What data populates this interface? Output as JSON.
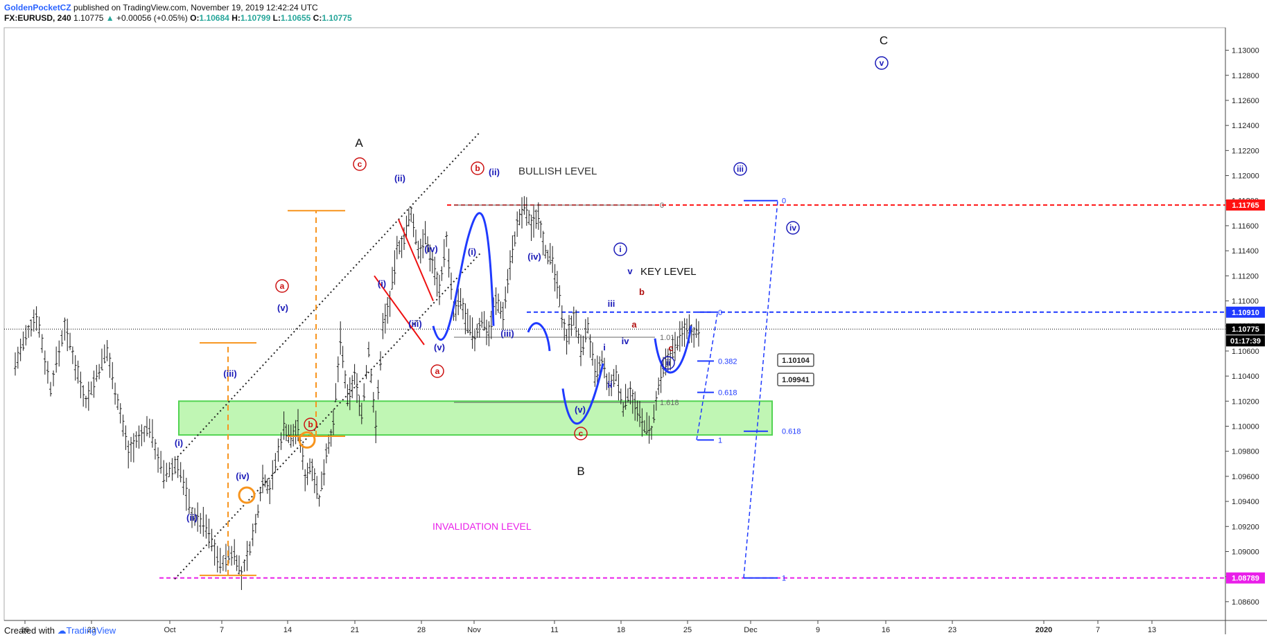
{
  "header": {
    "author": "GoldenPocketCZ",
    "published": "published on TradingView.com, November 19, 2019 12:42:24 UTC",
    "symbol": "FX:EURUSD, 240",
    "last": "1.10775",
    "change": "+0.00056 (+0.05%)",
    "o_label": "O:",
    "o": "1.10684",
    "h_label": "H:",
    "h": "1.10799",
    "l_label": "L:",
    "l": "1.10655",
    "c_label": "C:",
    "c": "1.10775"
  },
  "footer": {
    "created": "Created with",
    "brand": "TradingView"
  },
  "colors": {
    "blue": "#1a1ab8",
    "red": "#cc1111",
    "orange": "#f7941d",
    "magenta": "#e91ee9",
    "green_fill": "#b6f5a8",
    "green_stroke": "#33cc33",
    "key_blue": "#1f3aff",
    "bar": "#1a1a1a"
  },
  "chart_data": {
    "type": "ohlc",
    "symbol": "FX:EURUSD",
    "interval": "240",
    "ylim": [
      1.0845,
      1.1318
    ],
    "y_ticks": [
      "1.13000",
      "1.12800",
      "1.12600",
      "1.12400",
      "1.12200",
      "1.12000",
      "1.11800",
      "1.11600",
      "1.11400",
      "1.11200",
      "1.11000",
      "1.10800",
      "1.10600",
      "1.10400",
      "1.10200",
      "1.10000",
      "1.09800",
      "1.09600",
      "1.09400",
      "1.09200",
      "1.09000",
      "1.08800",
      "1.08600"
    ],
    "x_ticks": [
      "16",
      "23",
      "Oct",
      "7",
      "14",
      "21",
      "28",
      "Nov",
      "11",
      "18",
      "25",
      "Dec",
      "9",
      "16",
      "23",
      "2020",
      "7",
      "13"
    ],
    "price_series": [
      [
        0,
        1.105
      ],
      [
        3,
        1.109
      ],
      [
        5,
        1.103
      ],
      [
        7,
        1.108
      ],
      [
        10,
        1.102
      ],
      [
        13,
        1.106
      ],
      [
        16,
        1.098
      ],
      [
        19,
        1.1
      ],
      [
        21,
        1.096
      ],
      [
        23,
        1.097
      ],
      [
        25,
        1.093
      ],
      [
        27,
        1.092
      ],
      [
        29,
        1.089
      ],
      [
        31,
        1.09
      ],
      [
        32,
        1.088
      ],
      [
        34,
        1.092
      ],
      [
        35,
        1.096
      ],
      [
        36,
        1.095
      ],
      [
        38,
        1.1
      ],
      [
        39,
        1.099
      ],
      [
        40,
        1.1
      ],
      [
        41,
        1.096
      ],
      [
        42,
        1.097
      ],
      [
        43,
        1.094
      ],
      [
        44,
        1.098
      ],
      [
        45,
        1.1
      ],
      [
        46,
        1.107
      ],
      [
        47,
        1.102
      ],
      [
        48,
        1.104
      ],
      [
        49,
        1.101
      ],
      [
        50,
        1.106
      ],
      [
        51,
        1.1
      ],
      [
        52,
        1.108
      ],
      [
        53,
        1.11
      ],
      [
        54,
        1.114
      ],
      [
        55,
        1.115
      ],
      [
        56,
        1.117
      ],
      [
        57,
        1.114
      ],
      [
        58,
        1.115
      ],
      [
        59,
        1.113
      ],
      [
        60,
        1.111
      ],
      [
        61,
        1.115
      ],
      [
        62,
        1.109
      ],
      [
        63,
        1.11
      ],
      [
        64,
        1.108
      ],
      [
        65,
        1.107
      ],
      [
        66,
        1.1085
      ],
      [
        67,
        1.1075
      ],
      [
        68,
        1.11
      ],
      [
        69,
        1.109
      ],
      [
        70,
        1.113
      ],
      [
        71,
        1.116
      ],
      [
        72,
        1.1175
      ],
      [
        73,
        1.116
      ],
      [
        74,
        1.117
      ],
      [
        75,
        1.114
      ],
      [
        76,
        1.113
      ],
      [
        77,
        1.11
      ],
      [
        78,
        1.107
      ],
      [
        79,
        1.109
      ],
      [
        80,
        1.106
      ],
      [
        81,
        1.108
      ],
      [
        82,
        1.104
      ],
      [
        83,
        1.105
      ],
      [
        84,
        1.103
      ],
      [
        85,
        1.104
      ],
      [
        86,
        1.1015
      ],
      [
        87,
        1.103
      ],
      [
        88,
        1.101
      ],
      [
        89,
        1.1
      ],
      [
        90,
        1.0995
      ],
      [
        91,
        1.103
      ],
      [
        92,
        1.105
      ],
      [
        93,
        1.106
      ],
      [
        94,
        1.107
      ],
      [
        95,
        1.108
      ],
      [
        96,
        1.1075
      ],
      [
        97,
        1.10775
      ]
    ],
    "levels": [
      {
        "name": "BULLISH LEVEL",
        "price": 1.11765,
        "label": "1.11765",
        "color": "#ff1111",
        "style": "dashed"
      },
      {
        "name": "KEY LEVEL",
        "price": 1.1091,
        "label": "1.10910",
        "color": "#1f3aff",
        "style": "dashed"
      },
      {
        "name": "INVALIDATION LEVEL",
        "price": 1.08789,
        "label": "1.08789",
        "color": "#e91ee9",
        "style": "dashed"
      },
      {
        "name": "last",
        "price": 1.10775,
        "label": "1.10775",
        "color": "#000000",
        "style": "dotted"
      }
    ],
    "countdown": "01:17:39",
    "fib_levels": [
      {
        "label": "0",
        "price": 1.1091
      },
      {
        "label": "0.382",
        "price": 1.1052
      },
      {
        "label": "0.618",
        "price": 1.1027
      },
      {
        "label": "1",
        "price": 1.0989
      }
    ],
    "fib_tags": [
      "1.10104",
      "1.09941"
    ],
    "fib_tag_ratio": "0.618",
    "gray_levels": [
      {
        "label": "0",
        "price": 1.11765
      },
      {
        "label": "1.01",
        "price": 1.1071
      },
      {
        "label": "1.618",
        "price": 1.1019
      }
    ],
    "projection_levels": [
      {
        "label": "0",
        "price": 1.118
      },
      {
        "label": "1",
        "price": 1.08789
      }
    ],
    "wave_labels": {
      "A": "A",
      "B": "B",
      "C": "C",
      "circle_c": "c",
      "circle_a": "a",
      "circle_b": "b",
      "i": "(i)",
      "ii": "(ii)",
      "iii": "(iii)",
      "iv": "(iv)",
      "v": "(v)",
      "ci": "i",
      "cii": "ii",
      "ciii": "iii",
      "civ": "iv",
      "cv": "v",
      "small_i": "i",
      "small_ii": "ii",
      "small_iii": "iii",
      "small_iv": "iv",
      "small_v": "v",
      "a": "a",
      "b": "b",
      "c": "c"
    },
    "annotations": [
      "BULLISH LEVEL",
      "KEY LEVEL",
      "INVALIDATION LEVEL"
    ]
  }
}
